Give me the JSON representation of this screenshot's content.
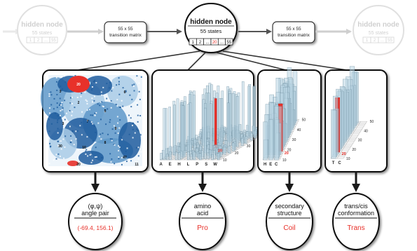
{
  "hidden_nodes": {
    "center": {
      "title": "hidden node",
      "states_label": "55 states",
      "cells": [
        "1",
        "2",
        "...",
        "20",
        "...",
        "55"
      ],
      "highlight_cell": "20"
    },
    "left": {
      "title": "hidden node",
      "states_label": "55 states",
      "cells": [
        "1",
        "2",
        "...",
        "55"
      ]
    },
    "right": {
      "title": "hidden node",
      "states_label": "55 states",
      "cells": [
        "1",
        "2",
        "...",
        "55"
      ]
    }
  },
  "transition_boxes": {
    "left": {
      "line1": "55 x 55",
      "line2": "transition matrix"
    },
    "right": {
      "line1": "55 x 55",
      "line2": "transition matrix"
    }
  },
  "panels": {
    "ramachandran": {
      "region_labels": [
        "20",
        "3",
        "2",
        "5",
        "6",
        "3",
        "7",
        "9",
        "30",
        "10",
        "8",
        "47",
        "11",
        "20"
      ]
    },
    "amino_acid": {
      "axis_letters": [
        "A",
        "E",
        "H",
        "L",
        "P",
        "S",
        "W"
      ],
      "depth_ticks": [
        "50",
        "40",
        "30",
        "20",
        "10"
      ],
      "highlight_label": "20"
    },
    "secondary_structure": {
      "axis_letters": [
        "H",
        "E",
        "C"
      ],
      "depth_ticks": [
        "50",
        "40",
        "30",
        "20",
        "10"
      ],
      "highlight_label": "20"
    },
    "trans_cis": {
      "axis_letters": [
        "T",
        "C"
      ],
      "depth_ticks": [
        "50",
        "40",
        "30",
        "20",
        "10"
      ],
      "highlight_label": "20"
    }
  },
  "outputs": [
    {
      "line1": "(φ,ψ)",
      "line2": "angle pair",
      "value": "(-69.4, 156.1)"
    },
    {
      "line1": "amino",
      "line2": "acid",
      "value": "Pro"
    },
    {
      "line1": "secondary",
      "line2": "structure",
      "value": "Coil"
    },
    {
      "line1": "trans/cis",
      "line2": "conformation",
      "value": "Trans"
    }
  ],
  "colors": {
    "accent_red": "#e8312a",
    "bar_blue": "#b9d6e4",
    "rama_dark": "#1e5c9e",
    "rama_mid": "#5e98c9",
    "rama_light": "#a9cbe6"
  }
}
